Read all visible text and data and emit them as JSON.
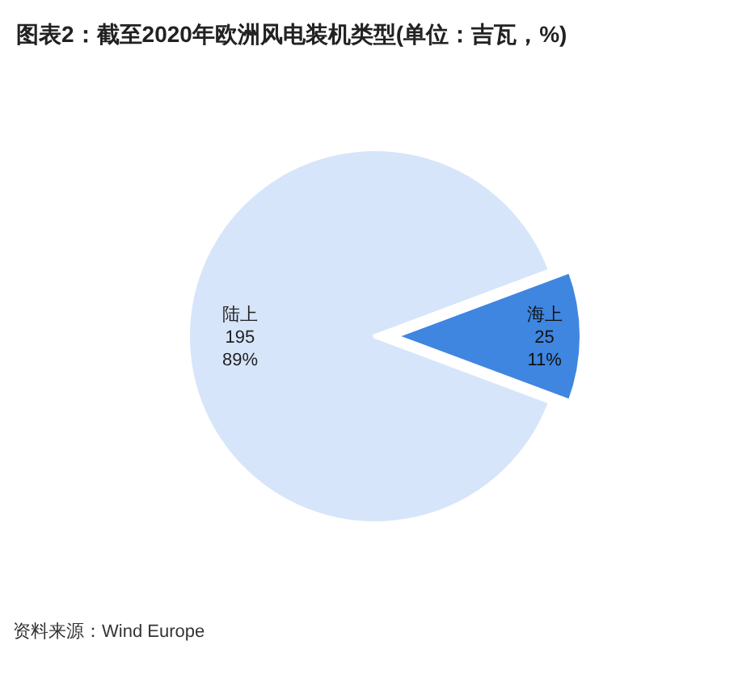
{
  "chart_data": {
    "type": "pie",
    "title": "图表2：截至2020年欧洲风电装机类型(单位：吉瓦，%)",
    "categories": [
      "陆上",
      "海上"
    ],
    "values": [
      195,
      25
    ],
    "colors": [
      "#d6e5fa",
      "#3f86e0"
    ],
    "value_labels": [
      "195\n89%",
      "25\n11%"
    ],
    "annotations": [
      "资料来源：Wind Europe"
    ]
  }
}
